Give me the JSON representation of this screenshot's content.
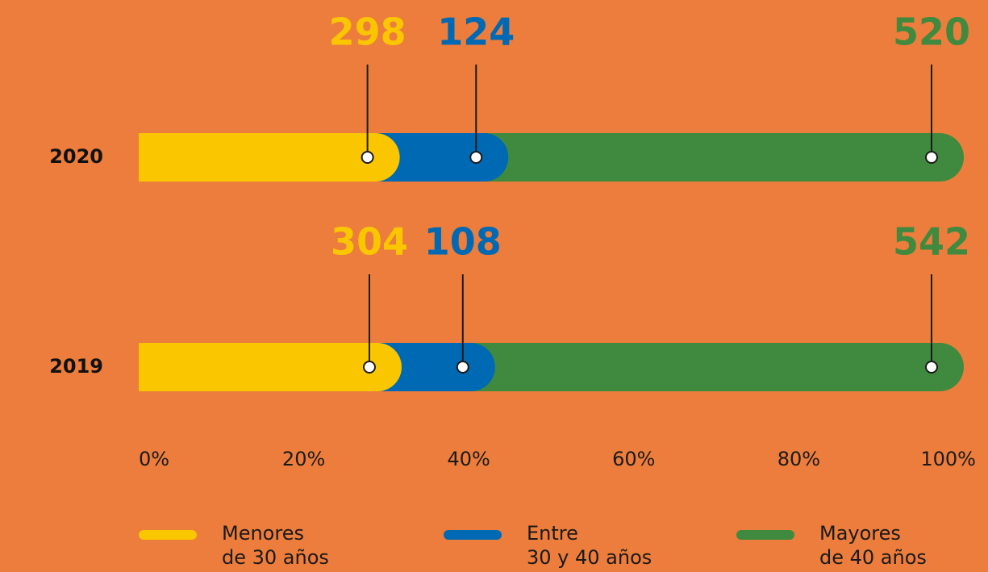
{
  "chart_data": {
    "type": "stacked-bar-100",
    "categories": [
      "2020",
      "2019"
    ],
    "series": [
      {
        "name": "Menores\nde 30 años",
        "color": "#fac600",
        "values": [
          298,
          304
        ]
      },
      {
        "name": "Entre\n30 y 40 años",
        "color": "#0069b4",
        "values": [
          124,
          108
        ]
      },
      {
        "name": "Mayores\nde 40 años",
        "color": "#3f8a3f",
        "values": [
          520,
          542
        ]
      }
    ],
    "xlim": [
      0,
      100
    ],
    "xticks": [
      {
        "value": 0,
        "label": "0%"
      },
      {
        "value": 20,
        "label": "20%"
      },
      {
        "value": 40,
        "label": "40%"
      },
      {
        "value": 60,
        "label": "60%"
      },
      {
        "value": 80,
        "label": "80%"
      },
      {
        "value": 100,
        "label": "100%"
      }
    ],
    "background": "#ec7d3c"
  }
}
